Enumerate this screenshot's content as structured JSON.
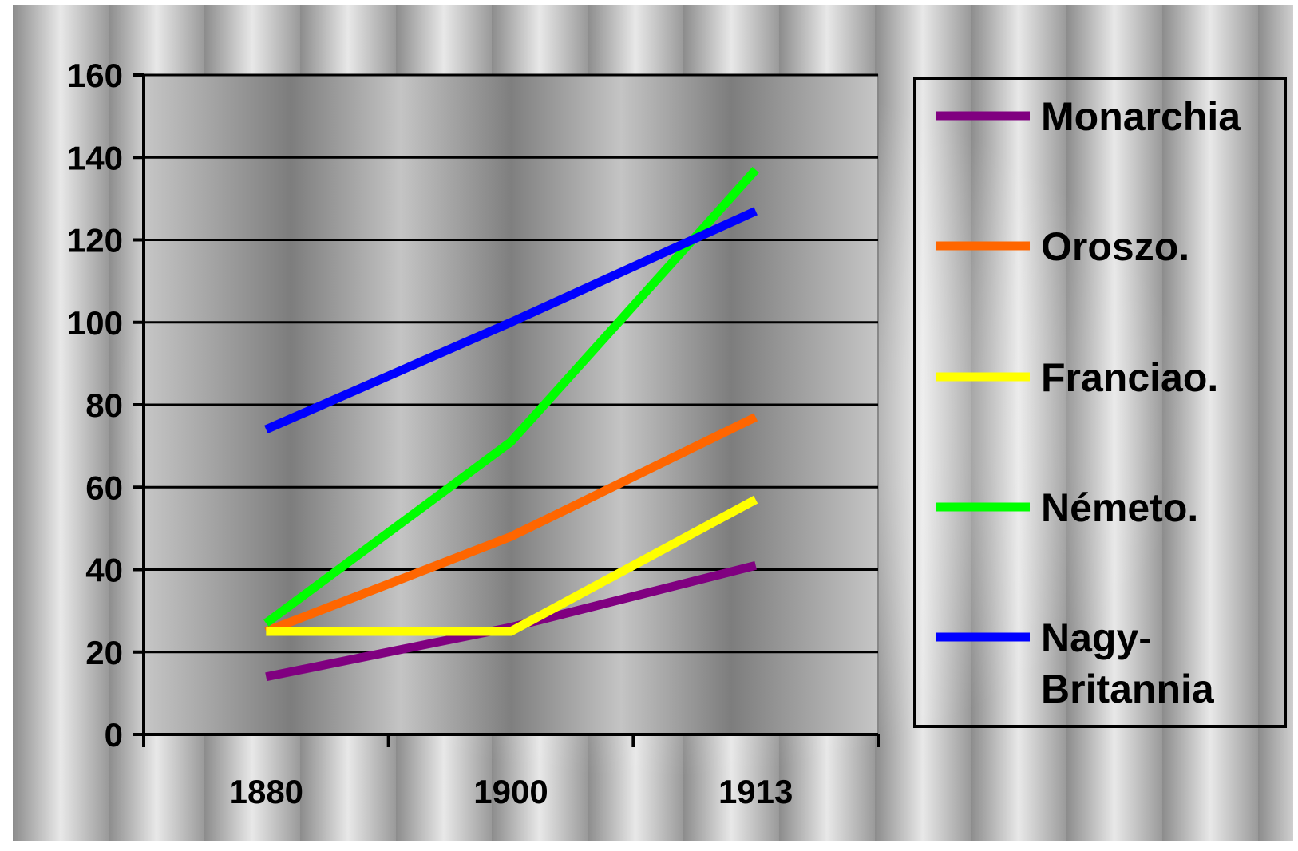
{
  "chart_data": {
    "type": "line",
    "categories": [
      "1880",
      "1900",
      "1913"
    ],
    "ylim": [
      0,
      160
    ],
    "yticks": [
      "0",
      "20",
      "40",
      "60",
      "80",
      "100",
      "120",
      "140",
      "160"
    ],
    "grid": true,
    "legend_position": "right",
    "series": [
      {
        "name": "Monarchia",
        "color": "#800080",
        "values": [
          14,
          26,
          41
        ]
      },
      {
        "name": "Oroszo.",
        "color": "#ff6600",
        "values": [
          25,
          48,
          77
        ]
      },
      {
        "name": "Franciao.",
        "color": "#ffff00",
        "values": [
          25,
          25,
          57
        ]
      },
      {
        "name": "Németo.",
        "color": "#00ff00",
        "values": [
          27,
          71,
          137
        ]
      },
      {
        "name": "Nagy-Britannia",
        "color": "#0000ff",
        "values": [
          74,
          100,
          127
        ]
      }
    ],
    "legend_lines": [
      [
        "Monarchia"
      ],
      [
        "Oroszo."
      ],
      [
        "Franciao."
      ],
      [
        "Németo."
      ],
      [
        "Nagy-",
        "Britannia"
      ]
    ]
  }
}
